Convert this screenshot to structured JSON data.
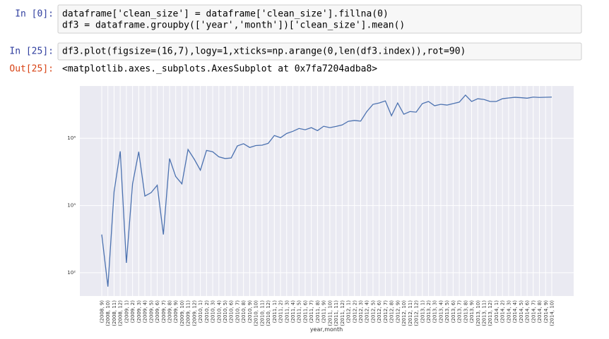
{
  "cells": [
    {
      "prompt": "In [0]:",
      "lines": [
        "dataframe['clean_size'] = dataframe['clean_size'].fillna(0)",
        "df3 = dataframe.groupby(['year','month'])['clean_size'].mean()"
      ]
    },
    {
      "prompt": "In [25]:",
      "lines": [
        "df3.plot(figsize=(16,7),logy=1,xticks=np.arange(0,len(df3.index)),rot=90)"
      ],
      "out_prompt": "Out[25]:",
      "output": "<matplotlib.axes._subplots.AxesSubplot at 0x7fa7204adba8>"
    }
  ],
  "chart_data": {
    "type": "line",
    "xlabel": "year,month",
    "log_y": true,
    "grid": true,
    "ylim": [
      45,
      60000
    ],
    "yticks": [
      {
        "value": 100,
        "label": "10²"
      },
      {
        "value": 1000,
        "label": "10³"
      },
      {
        "value": 10000,
        "label": "10⁴"
      }
    ],
    "categories": [
      "(2008, 9)",
      "(2008, 10)",
      "(2008, 11)",
      "(2008, 12)",
      "(2009, 1)",
      "(2009, 2)",
      "(2009, 3)",
      "(2009, 4)",
      "(2009, 5)",
      "(2009, 6)",
      "(2009, 7)",
      "(2009, 8)",
      "(2009, 9)",
      "(2009, 10)",
      "(2009, 11)",
      "(2009, 12)",
      "(2010, 1)",
      "(2010, 2)",
      "(2010, 3)",
      "(2010, 4)",
      "(2010, 5)",
      "(2010, 6)",
      "(2010, 7)",
      "(2010, 8)",
      "(2010, 9)",
      "(2010, 10)",
      "(2010, 11)",
      "(2010, 12)",
      "(2011, 1)",
      "(2011, 2)",
      "(2011, 3)",
      "(2011, 4)",
      "(2011, 5)",
      "(2011, 6)",
      "(2011, 7)",
      "(2011, 8)",
      "(2011, 9)",
      "(2011, 10)",
      "(2011, 11)",
      "(2011, 12)",
      "(2012, 1)",
      "(2012, 2)",
      "(2012, 3)",
      "(2012, 4)",
      "(2012, 5)",
      "(2012, 6)",
      "(2012, 7)",
      "(2012, 8)",
      "(2012, 9)",
      "(2012, 10)",
      "(2012, 11)",
      "(2012, 12)",
      "(2013, 1)",
      "(2013, 2)",
      "(2013, 3)",
      "(2013, 4)",
      "(2013, 5)",
      "(2013, 6)",
      "(2013, 7)",
      "(2013, 8)",
      "(2013, 9)",
      "(2013, 10)",
      "(2013, 11)",
      "(2013, 12)",
      "(2014, 1)",
      "(2014, 2)",
      "(2014, 3)",
      "(2014, 4)",
      "(2014, 5)",
      "(2014, 6)",
      "(2014, 7)",
      "(2014, 8)",
      "(2014, 9)",
      "(2014, 10)"
    ],
    "series": [
      {
        "name": "clean_size",
        "color": "#4c72b0",
        "values": [
          370,
          62,
          1600,
          6400,
          140,
          2100,
          6300,
          1380,
          1550,
          2000,
          370,
          5000,
          2700,
          2100,
          6800,
          4900,
          3350,
          6600,
          6300,
          5300,
          5000,
          5100,
          7700,
          8300,
          7300,
          7800,
          7900,
          8400,
          11000,
          10200,
          11800,
          12700,
          14000,
          13400,
          14400,
          13000,
          15100,
          14400,
          15000,
          15800,
          17900,
          18400,
          18000,
          25000,
          32000,
          33500,
          36000,
          21700,
          33500,
          22800,
          25000,
          24500,
          32800,
          35300,
          30500,
          32000,
          31200,
          32800,
          34500,
          43900,
          35300,
          38800,
          37800,
          35300,
          35300,
          38800,
          39800,
          40700,
          40200,
          39500,
          41000,
          40500,
          40800,
          41000
        ]
      }
    ]
  }
}
